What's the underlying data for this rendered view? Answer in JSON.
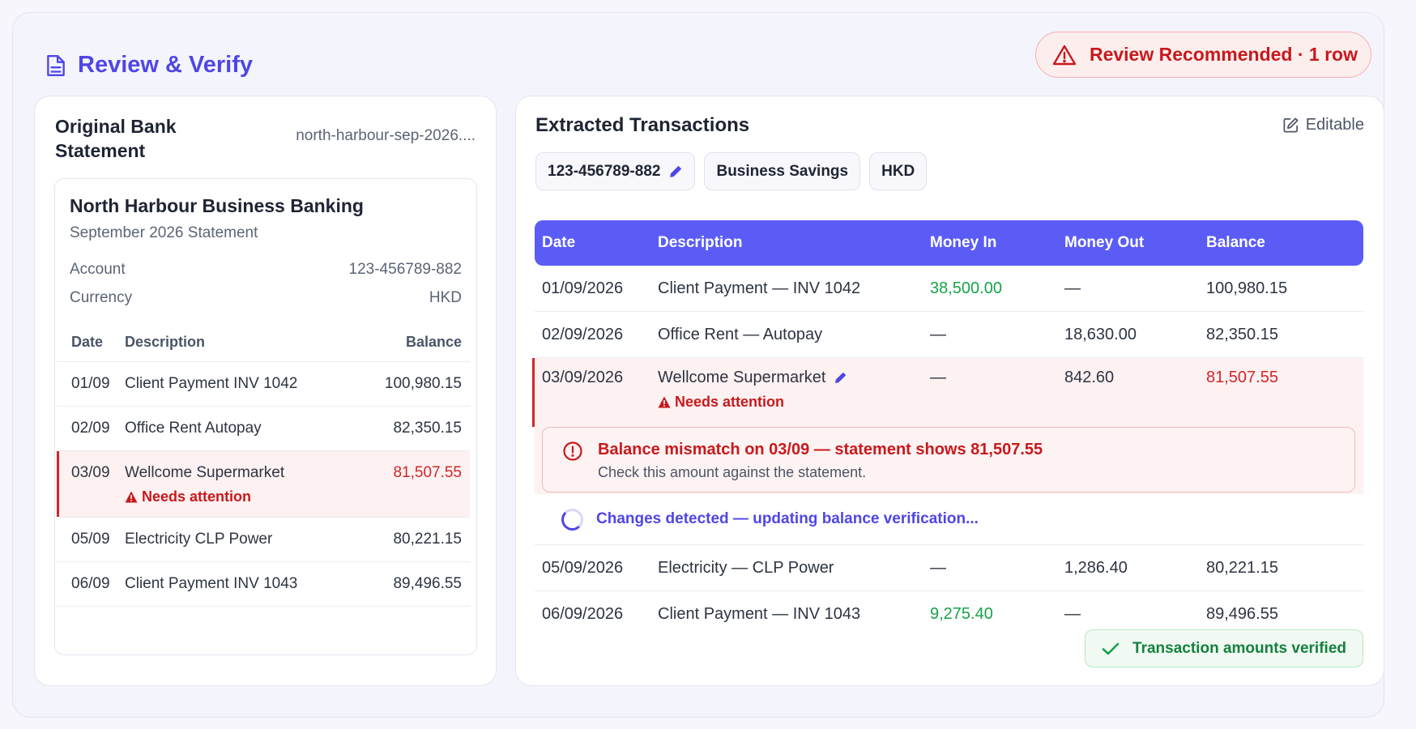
{
  "header": {
    "title": "Review & Verify",
    "title_icon": "document-icon",
    "alert_label": "Review Recommended · 1 row",
    "alert_icon": "warning-icon"
  },
  "colors": {
    "accent": "#4f46e5",
    "table_header": "#5b5cf6",
    "danger": "#c8191c",
    "success": "#16a34a"
  },
  "original": {
    "title": "Original Bank Statement",
    "filename": "north-harbour-sep-2026....",
    "bank_name": "North Harbour Business Banking",
    "period": "September 2026 Statement",
    "account_label": "Account",
    "account_value": "123-456789-882",
    "currency_label": "Currency",
    "currency_value": "HKD",
    "columns": {
      "date": "Date",
      "description": "Description",
      "balance": "Balance"
    },
    "rows": [
      {
        "date": "01/09",
        "description": "Client Payment INV 1042",
        "balance": "100,980.15"
      },
      {
        "date": "02/09",
        "description": "Office Rent Autopay",
        "balance": "82,350.15"
      },
      {
        "date": "03/09",
        "description": "Wellcome Supermarket",
        "balance": "81,507.55",
        "flag": "Needs attention"
      },
      {
        "date": "05/09",
        "description": "Electricity CLP Power",
        "balance": "80,221.15"
      },
      {
        "date": "06/09",
        "description": "Client Payment INV 1043",
        "balance": "89,496.55"
      }
    ]
  },
  "extracted": {
    "title": "Extracted Transactions",
    "editable_label": "Editable",
    "chips": {
      "account": "123-456789-882",
      "account_type": "Business Savings",
      "currency": "HKD"
    },
    "columns": {
      "date": "Date",
      "description": "Description",
      "money_in": "Money In",
      "money_out": "Money Out",
      "balance": "Balance"
    },
    "rows": [
      {
        "date": "01/09/2026",
        "description": "Client Payment — INV 1042",
        "money_in": "38,500.00",
        "money_out": "—",
        "balance": "100,980.15"
      },
      {
        "date": "02/09/2026",
        "description": "Office Rent — Autopay",
        "money_in": "—",
        "money_out": "18,630.00",
        "balance": "82,350.15"
      },
      {
        "date": "03/09/2026",
        "description": "Wellcome Supermarket",
        "money_in": "—",
        "money_out": "842.60",
        "balance": "81,507.55",
        "flag": "Needs attention"
      },
      {
        "date": "05/09/2026",
        "description": "Electricity — CLP Power",
        "money_in": "—",
        "money_out": "1,286.40",
        "balance": "80,221.15"
      },
      {
        "date": "06/09/2026",
        "description": "Client Payment — INV 1043",
        "money_in": "9,275.40",
        "money_out": "—",
        "balance": "89,496.55"
      }
    ],
    "mismatch": {
      "title": "Balance mismatch on 03/09 — statement shows 81,507.55",
      "detail": "Check this amount against the statement."
    },
    "updating_text": "Changes detected — updating balance verification...",
    "verified_label": "Transaction amounts verified"
  }
}
